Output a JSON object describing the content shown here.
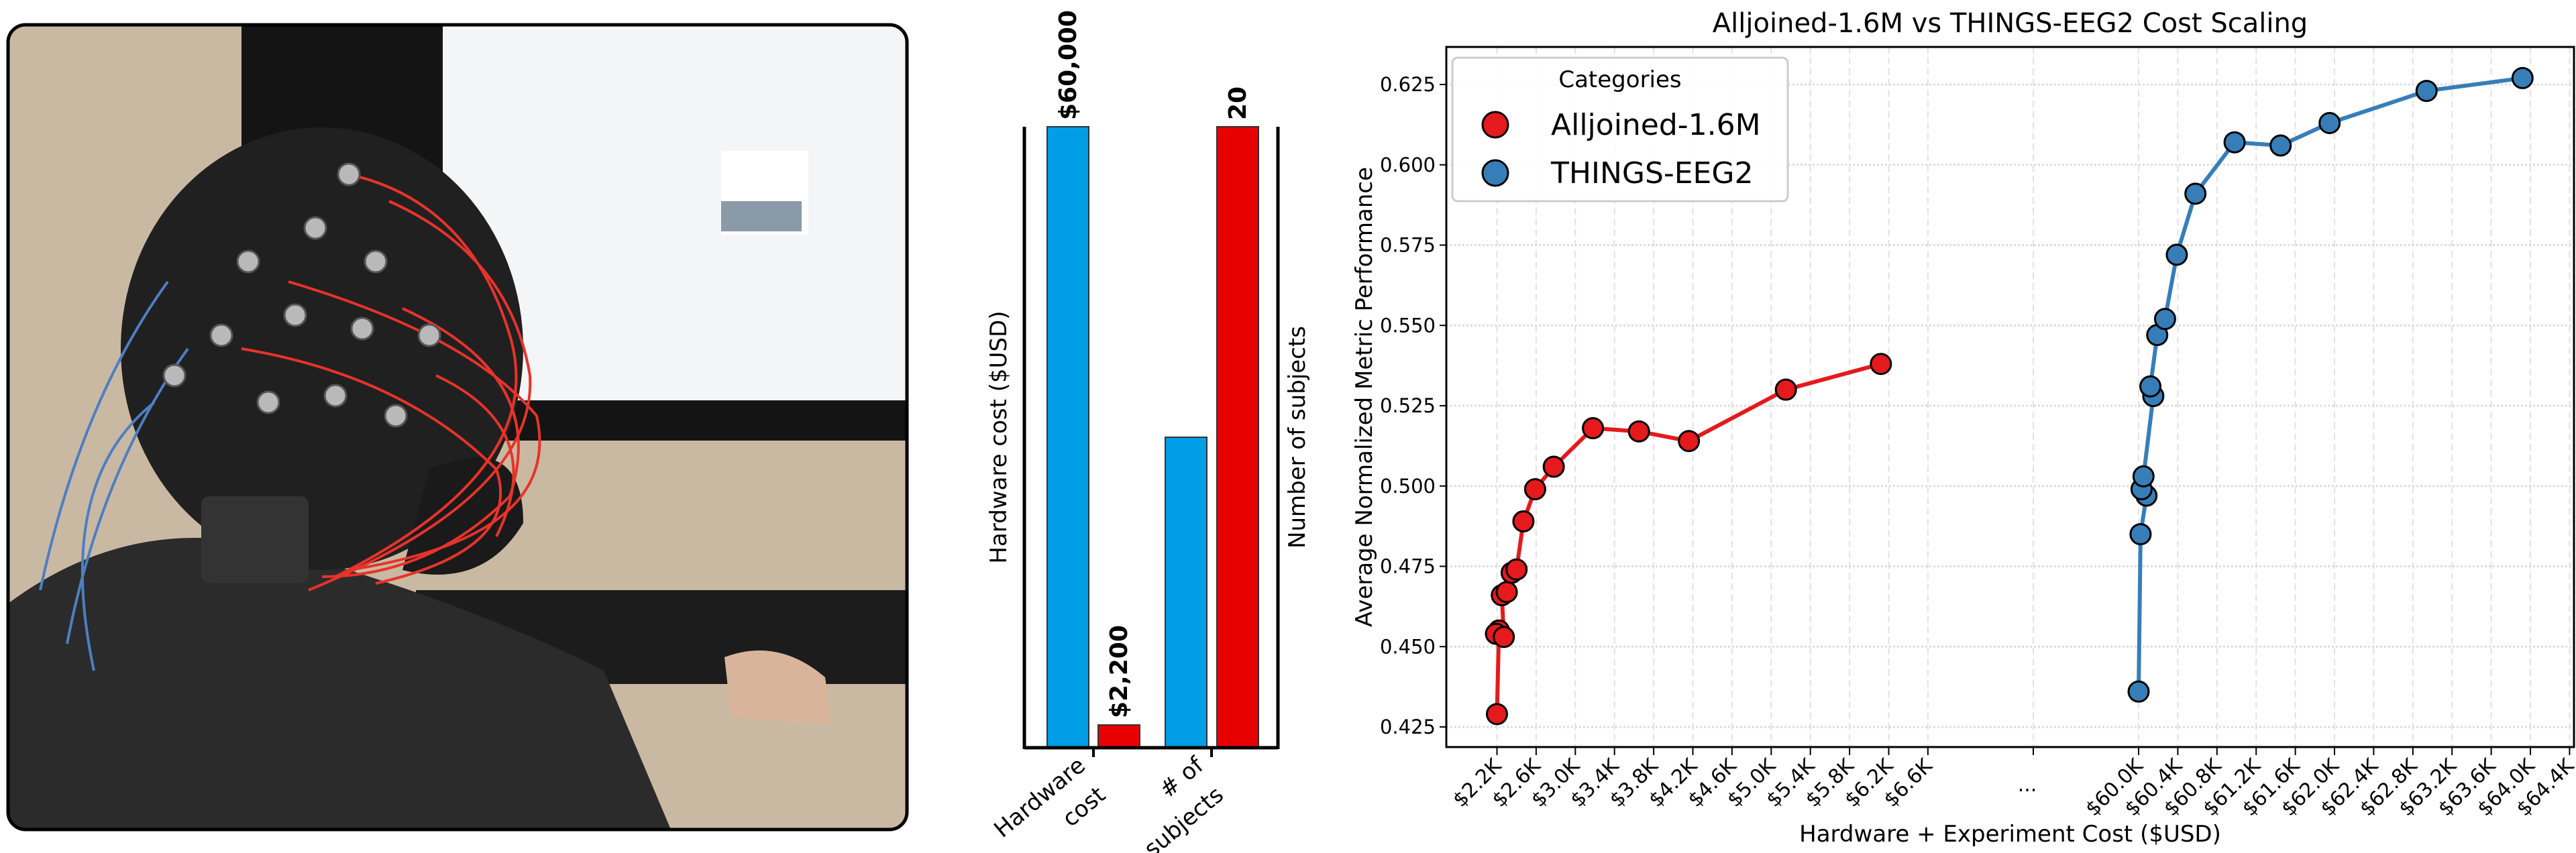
{
  "photo": {
    "description_icon": "eeg-cap-photo"
  },
  "chart_data": [
    {
      "type": "bar",
      "categories": [
        "Hardware\ncost",
        "# of\nsubjects"
      ],
      "category_labels": [
        [
          "Hardware",
          "cost"
        ],
        [
          "# of",
          "subjects"
        ]
      ],
      "ylabel_left": "Hardware cost ($USD)",
      "ylabel_right": "Number of subjects",
      "colors": {
        "THINGS-EEG2": "#009ee6",
        "Alljoined-1.6M": "#e80000"
      },
      "bars": [
        {
          "group": "Hardware cost",
          "series": "THINGS-EEG2",
          "value": 60000,
          "label": "$60,000"
        },
        {
          "group": "Hardware cost",
          "series": "Alljoined-1.6M",
          "value": 2200,
          "label": "$2,200"
        },
        {
          "group": "# of subjects",
          "series": "THINGS-EEG2",
          "value": 10,
          "label": ""
        },
        {
          "group": "# of subjects",
          "series": "Alljoined-1.6M",
          "value": 20,
          "label": "20"
        }
      ],
      "ylim_left": [
        0,
        60000
      ],
      "ylim_right": [
        0,
        20
      ]
    },
    {
      "type": "line",
      "title": "Alljoined-1.6M vs THINGS-EEG2 Cost Scaling",
      "xlabel": "Hardware + Experiment Cost ($USD)",
      "ylabel": "Average Normalized Metric Performance",
      "x_axis_broken": true,
      "break_label": "...",
      "xlim_segments": [
        [
          2.0,
          6.8
        ],
        [
          59.8,
          64.4
        ]
      ],
      "xticks_left": [
        "$2.2K",
        "$2.6K",
        "$3.0K",
        "$3.4K",
        "$3.8K",
        "$4.2K",
        "$4.6K",
        "$5.0K",
        "$5.4K",
        "$5.8K",
        "$6.2K",
        "$6.6K"
      ],
      "xticks_right": [
        "$60.0K",
        "$60.4K",
        "$60.8K",
        "$61.2K",
        "$61.6K",
        "$62.0K",
        "$62.4K",
        "$62.8K",
        "$63.2K",
        "$63.6K",
        "$64.0K",
        "$64.4K"
      ],
      "yticks": [
        "0.425",
        "0.450",
        "0.475",
        "0.500",
        "0.525",
        "0.550",
        "0.575",
        "0.600",
        "0.625"
      ],
      "ylim": [
        0.418,
        0.636
      ],
      "grid": true,
      "legend": {
        "title": "Categories",
        "placement": "top-left"
      },
      "series": [
        {
          "name": "Alljoined-1.6M",
          "color": "#e41a1c",
          "x_thousands_usd": [
            2.2,
            2.22,
            2.19,
            2.27,
            2.25,
            2.3,
            2.35,
            2.4,
            2.47,
            2.59,
            2.78,
            3.18,
            3.65,
            4.16,
            5.15,
            6.12
          ],
          "y": [
            0.429,
            0.455,
            0.454,
            0.453,
            0.466,
            0.467,
            0.473,
            0.474,
            0.489,
            0.499,
            0.506,
            0.518,
            0.517,
            0.514,
            0.53,
            0.538
          ]
        },
        {
          "name": "THINGS-EEG2",
          "color": "#377eb8",
          "x_thousands_usd": [
            60.0,
            60.02,
            60.08,
            60.03,
            60.05,
            60.15,
            60.12,
            60.19,
            60.27,
            60.39,
            60.58,
            60.98,
            61.45,
            61.95,
            62.94,
            63.92
          ],
          "y": [
            0.436,
            0.485,
            0.497,
            0.499,
            0.503,
            0.528,
            0.531,
            0.547,
            0.552,
            0.572,
            0.591,
            0.607,
            0.606,
            0.613,
            0.623,
            0.627
          ]
        }
      ]
    }
  ]
}
